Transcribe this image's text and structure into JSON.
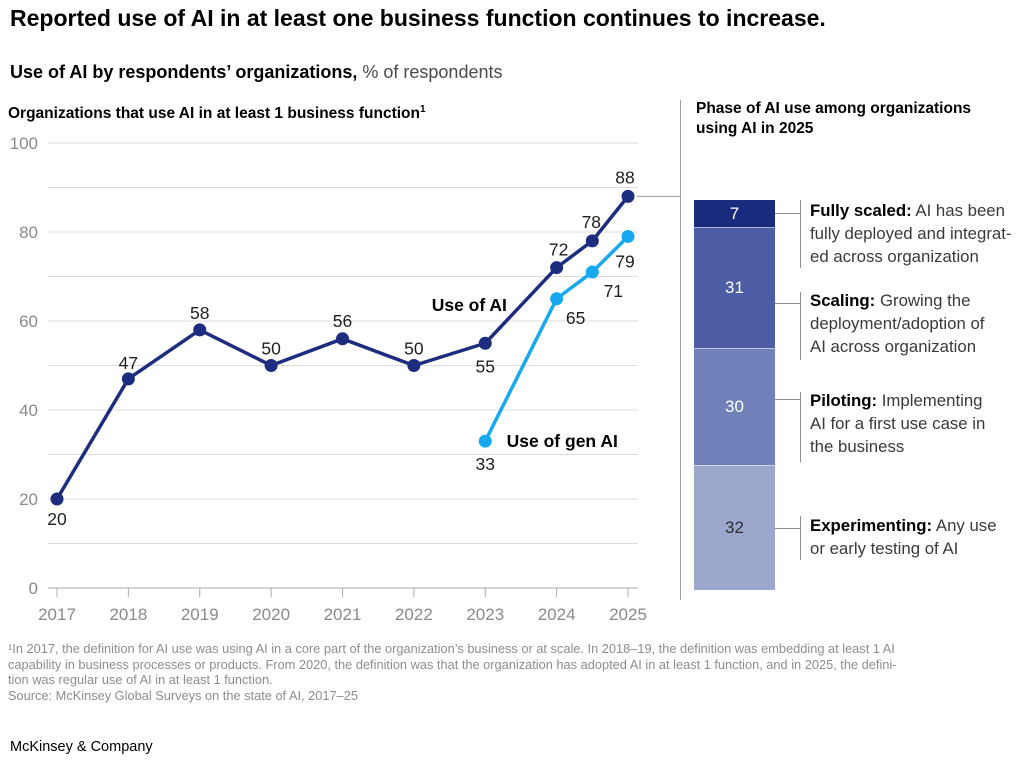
{
  "header": {
    "title": "Reported use of AI in at least one business function continues to increase.",
    "subtitle_bold": "Use of AI by respondents’ organizations,",
    "subtitle_rest": " % of respondents"
  },
  "line_panel": {
    "heading": "Organizations that use AI in at least 1 business function",
    "heading_footnote_marker": "1"
  },
  "phase_panel": {
    "heading": "Phase of AI use among organizations using AI in 2025"
  },
  "chart_data": [
    {
      "type": "line",
      "title": "Organizations that use AI in at least 1 business function",
      "xlabel": "",
      "ylabel": "% of respondents",
      "ylim": [
        0,
        100
      ],
      "ytick_step": 20,
      "grid_step": 10,
      "grid": true,
      "legend_position": "inline-annotations",
      "x_ticks": [
        2017,
        2018,
        2019,
        2020,
        2021,
        2022,
        2023,
        2024,
        2025
      ],
      "series": [
        {
          "name": "Use of AI",
          "color": "#1c2d80",
          "x": [
            2017,
            2018,
            2019,
            2020,
            2021,
            2022,
            2023,
            2024,
            2024.5,
            2025
          ],
          "values": [
            20,
            47,
            58,
            50,
            56,
            50,
            55,
            72,
            78,
            88
          ],
          "label_offsets": [
            [
              0,
              26
            ],
            [
              0,
              -10
            ],
            [
              0,
              -11
            ],
            [
              0,
              -11
            ],
            [
              0,
              -12
            ],
            [
              0,
              -11
            ],
            [
              0,
              29
            ],
            [
              2,
              -12
            ],
            [
              -1,
              -13
            ],
            [
              -3,
              -13
            ]
          ]
        },
        {
          "name": "Use of gen AI",
          "color": "#16a9f0",
          "x": [
            2023,
            2024,
            2024.5,
            2025
          ],
          "values": [
            33,
            65,
            71,
            79
          ],
          "label_offsets": [
            [
              0,
              29
            ],
            [
              19,
              25
            ],
            [
              21,
              25
            ],
            [
              -3,
              31
            ]
          ]
        }
      ],
      "annotations": [
        {
          "text": "Use of AI",
          "x": 2022.25,
          "y": 62.2
        },
        {
          "text": "Use of gen AI",
          "x": 2023.3,
          "y": 31.7
        }
      ]
    },
    {
      "type": "bar",
      "subtype": "stacked-single-column",
      "title": "Phase of AI use among organizations using AI in 2025",
      "total": 100,
      "segments": [
        {
          "label": "Fully scaled",
          "value": 7,
          "color": "#1a2a7d",
          "value_text_color": "#ffffff",
          "term": "Fully scaled:",
          "desc_lines": [
            " AI has been",
            "fully deployed and integrat-",
            "ed across organization"
          ]
        },
        {
          "label": "Scaling",
          "value": 31,
          "color": "#4d5ea6",
          "value_text_color": "#ffffff",
          "term": "Scaling:",
          "desc_lines": [
            " Growing the",
            "deployment/adoption of",
            "AI across organization"
          ]
        },
        {
          "label": "Piloting",
          "value": 30,
          "color": "#7080b8",
          "value_text_color": "#ffffff",
          "term": "Piloting:",
          "desc_lines": [
            " Implementing",
            "AI for a first use case in",
            "the business"
          ]
        },
        {
          "label": "Experimenting",
          "value": 32,
          "color": "#9da7cd",
          "value_text_color": "#2e2e2e",
          "term": "Experimenting:",
          "desc_lines": [
            " Any use",
            "or early testing of AI"
          ]
        }
      ]
    }
  ],
  "footnote": "¹In 2017, the definition for AI use was using AI in a core part of the organization’s business or at scale. In 2018–19, the definition was embedding at least 1 AI\n capability in business processes or products. From 2020, the definition was that the organization has adopted AI in at least 1 function, and in 2025, the defini-\ntion was regular use of AI in at least 1 function.\nSource: McKinsey Global Surveys on the state of AI, 2017–25",
  "footer": "McKinsey & Company"
}
